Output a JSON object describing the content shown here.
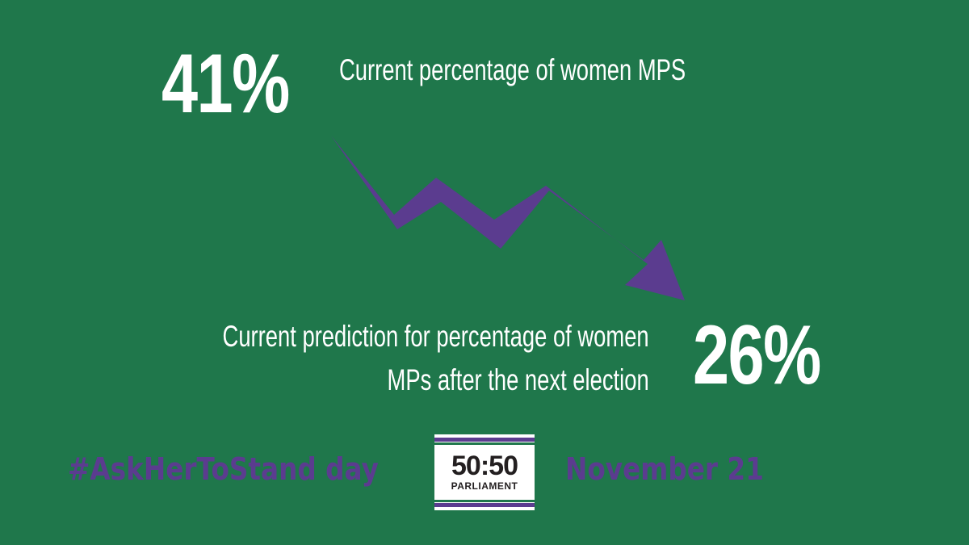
{
  "current": {
    "value": "41%",
    "caption": "Current percentage of women MPS"
  },
  "prediction": {
    "value": "26%",
    "caption_line1": "Current prediction for percentage of women",
    "caption_line2": "MPs after the next election"
  },
  "footer": {
    "hashtag": "#AskHerToStand day",
    "date": "November 21"
  },
  "logo": {
    "main": "50:50",
    "sub": "PARLIAMENT"
  },
  "colors": {
    "background": "#1f774b",
    "accent": "#5b3c8f",
    "text": "#ffffff"
  }
}
